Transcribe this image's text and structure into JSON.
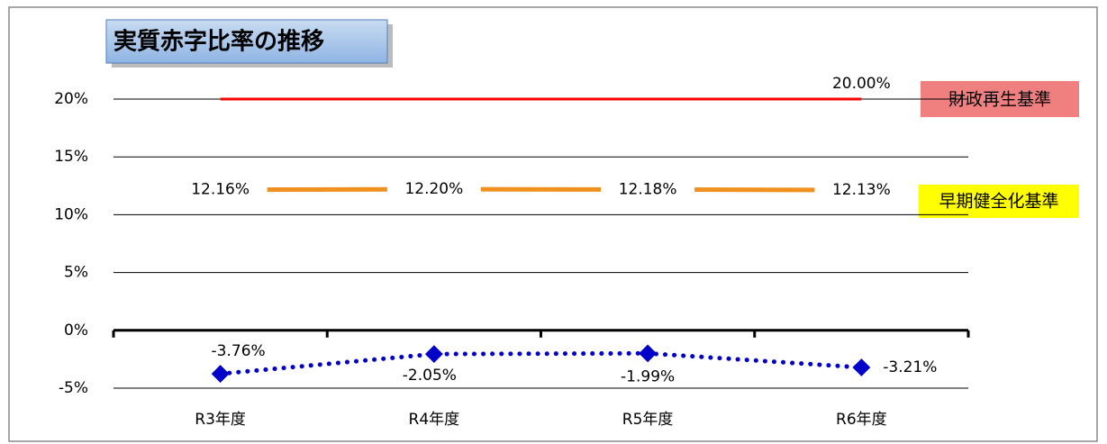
{
  "chart_data": {
    "type": "line",
    "title": "実質赤字比率の推移",
    "categories": [
      "R3年度",
      "R4年度",
      "R5年度",
      "R6年度"
    ],
    "ylim": [
      -5,
      20
    ],
    "yticks": [
      {
        "value": -5,
        "label": "-5%"
      },
      {
        "value": 0,
        "label": "0%"
      },
      {
        "value": 5,
        "label": "5%"
      },
      {
        "value": 10,
        "label": "10%"
      },
      {
        "value": 15,
        "label": "15%"
      },
      {
        "value": 20,
        "label": "20%"
      }
    ],
    "grid": true,
    "series": [
      {
        "name": "財政再生基準",
        "color": "#ff0000",
        "values": [
          20,
          20,
          20,
          20
        ],
        "value_labels": [
          null,
          null,
          null,
          "20.00%"
        ]
      },
      {
        "name": "早期健全化基準",
        "color": "#f0901e",
        "values": [
          12.16,
          12.2,
          12.18,
          12.13
        ],
        "value_labels": [
          "12.16%",
          "12.20%",
          "12.18%",
          "12.13%"
        ]
      },
      {
        "color": "#0000c8",
        "values": [
          -3.76,
          -2.05,
          -1.99,
          -3.21
        ],
        "value_labels": [
          "-3.76%",
          "-2.05%",
          "-1.99%",
          "-3.21%"
        ]
      }
    ]
  }
}
